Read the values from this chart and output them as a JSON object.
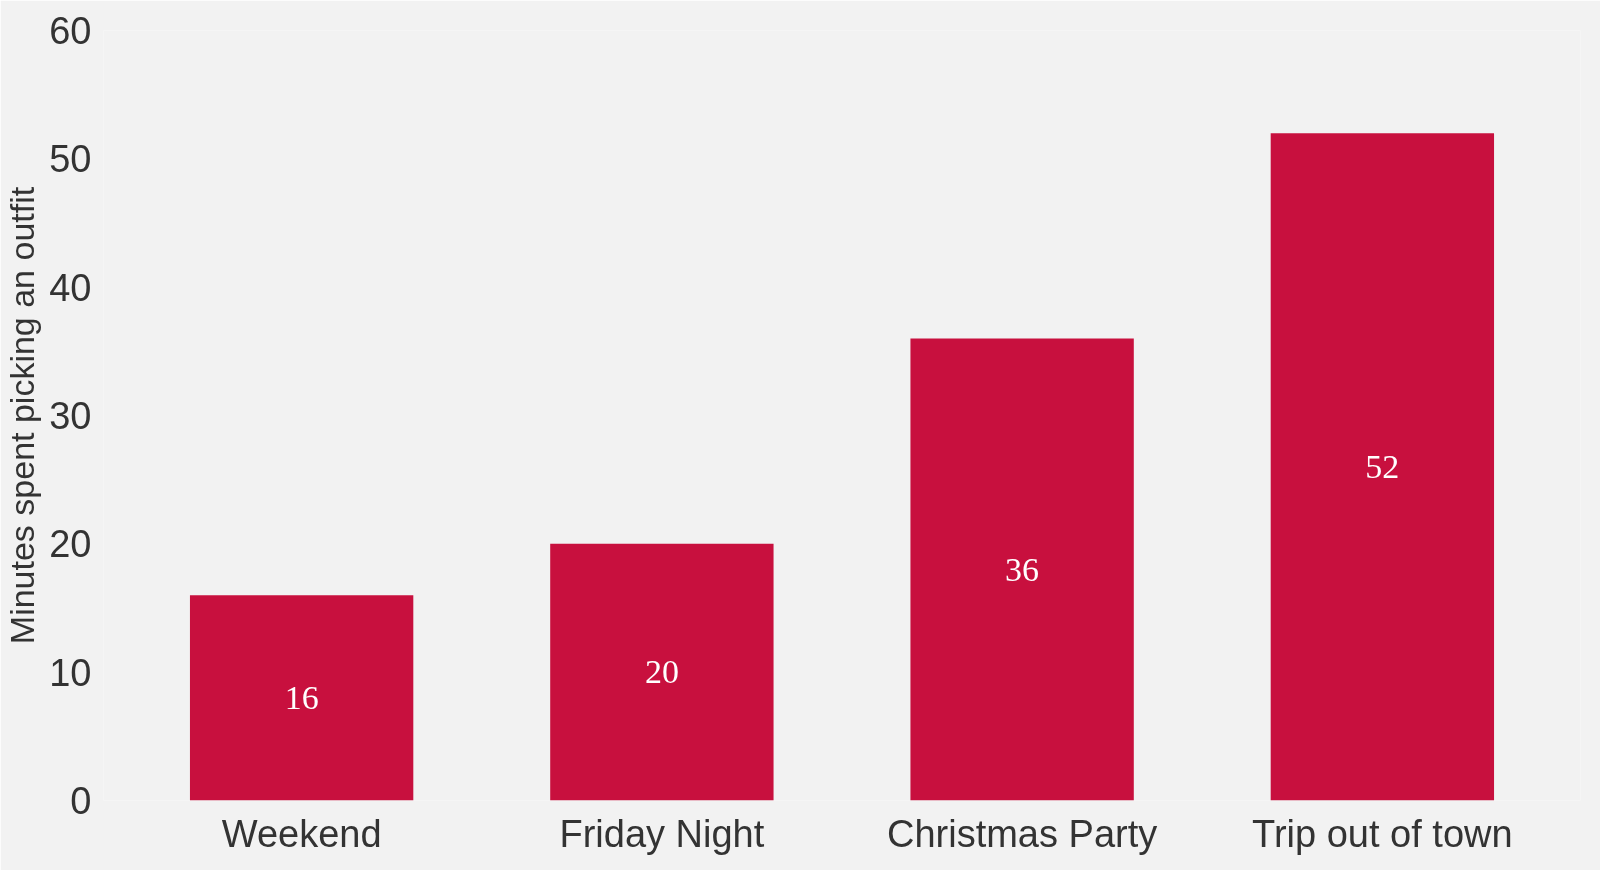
{
  "chart_data": {
    "type": "bar",
    "ylabel": "Minutes spent picking an outfit",
    "categories": [
      "Weekend",
      "Friday Night",
      "Christmas Party",
      "Trip out of town"
    ],
    "values": [
      16,
      20,
      36,
      52
    ],
    "color": "#c8103e",
    "ylim": [
      0,
      60
    ],
    "yticks": [
      0,
      10,
      20,
      30,
      40,
      50,
      60
    ],
    "grid": false,
    "data_labels": true
  }
}
